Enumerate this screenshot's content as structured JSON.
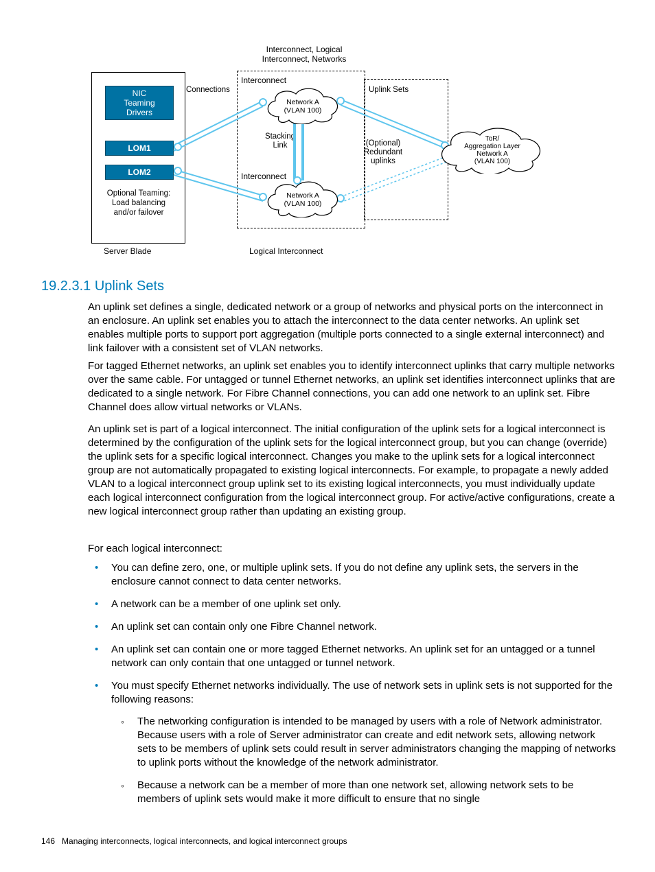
{
  "diagram": {
    "header_top": "Interconnect, Logical\nInterconnect, Networks",
    "connections": "Connections",
    "interconnect1": "Interconnect",
    "interconnect2": "Interconnect",
    "stacking": "Stacking\nLink",
    "uplink_sets": "Uplink Sets",
    "optional_redundant": "(Optional)\nRedundant\nuplinks",
    "nic": "NIC\nTeaming\nDrivers",
    "lom1": "LOM1",
    "lom2": "LOM2",
    "optional_teaming": "Optional Teaming:\nLoad balancing\nand/or failover",
    "server_blade": "Server Blade",
    "logical_interconnect": "Logical Interconnect",
    "cloud_a": "Network A\n(VLAN 100)",
    "cloud_b": "Network A\n(VLAN 100)",
    "cloud_c": "ToR/\nAggregation Layer\nNetwork A\n(VLAN 100)",
    "colors": {
      "box_blue": "#0072a3",
      "line_blue": "#5ec5ed",
      "heading_blue": "#007dba"
    }
  },
  "heading": {
    "number": "19.2.3.1",
    "title": "Uplink Sets"
  },
  "body": {
    "p1": "An uplink set defines a single, dedicated network or a group of networks and physical ports on the interconnect in an enclosure. An uplink set enables you to attach the interconnect to the data center networks. An uplink set enables multiple ports to support port aggregation (multiple ports connected to a single external interconnect) and link failover with a consistent set of VLAN networks.",
    "p2": "For tagged Ethernet networks, an uplink set enables you to identify interconnect uplinks that carry multiple networks over the same cable. For untagged or tunnel Ethernet networks, an uplink set identifies interconnect uplinks that are dedicated to a single network. For Fibre Channel connections, you can add one network to an uplink set. Fibre Channel does allow virtual networks or VLANs.",
    "p3": "An uplink set is part of a logical interconnect. The initial configuration of the uplink sets for a logical interconnect is determined by the configuration of the uplink sets for the logical interconnect group, but you can change (override) the uplink sets for a specific logical interconnect. Changes you make to the uplink sets for a logical interconnect group are not automatically propagated to existing logical interconnects. For example, to propagate a newly added VLAN to a logical interconnect group uplink set to its existing logical interconnects, you must individually update each logical interconnect configuration from the logical interconnect group. For active/active configurations, create a new logical interconnect group rather than updating an existing group.",
    "p4": "For each logical interconnect:"
  },
  "bullets": {
    "b1": "You can define zero, one, or multiple uplink sets. If you do not define any uplink sets, the servers in the enclosure cannot connect to data center networks.",
    "b2": "A network can be a member of one uplink set only.",
    "b3": "An uplink set can contain only one Fibre Channel network.",
    "b4": "An uplink set can contain one or more tagged Ethernet networks. An uplink set for an untagged or a tunnel network can only contain that one untagged or tunnel network.",
    "b5": "You must specify Ethernet networks individually. The use of network sets in uplink sets is not supported for the following reasons:",
    "s1": "The networking configuration is intended to be managed by users with a role of Network administrator. Because users with a role of Server administrator can create and edit network sets, allowing network sets to be members of uplink sets could result in server administrators changing the mapping of networks to uplink ports without the knowledge of the network administrator.",
    "s2": "Because a network can be a member of more than one network set, allowing network sets to be members of uplink sets would make it more difficult to ensure that no single"
  },
  "footer": {
    "page": "146",
    "text": "Managing interconnects, logical interconnects, and logical interconnect groups"
  }
}
